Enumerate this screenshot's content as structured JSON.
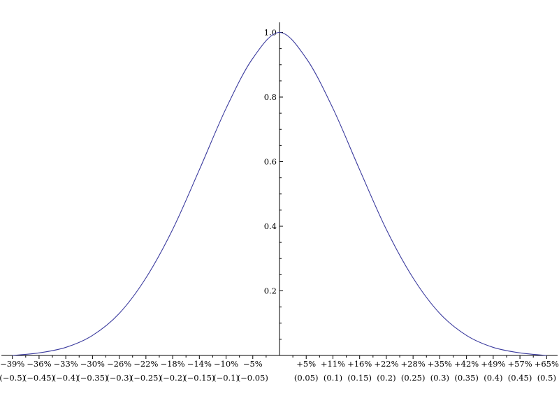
{
  "chart_data": {
    "type": "line",
    "title": "",
    "xlabel": "",
    "ylabel": "",
    "xlim": [
      -0.5205,
      0.5205
    ],
    "ylim": [
      0,
      1.03
    ],
    "grid": false,
    "line_color": "#3b3b9e",
    "series": [
      {
        "x": [
          -0.5,
          -0.45,
          -0.4,
          -0.35,
          -0.3,
          -0.25,
          -0.2,
          -0.15,
          -0.1,
          -0.05,
          0,
          0.05,
          0.1,
          0.15,
          0.2,
          0.25,
          0.3,
          0.35,
          0.4,
          0.45,
          0.5
        ],
        "y": [
          0.0,
          0.008,
          0.025,
          0.062,
          0.13,
          0.24,
          0.39,
          0.575,
          0.765,
          0.92,
          1.0,
          0.92,
          0.765,
          0.575,
          0.39,
          0.24,
          0.13,
          0.062,
          0.025,
          0.008,
          0.0
        ]
      }
    ],
    "y_ticks": [
      {
        "value": 0.2,
        "label": "0.2"
      },
      {
        "value": 0.4,
        "label": "0.4"
      },
      {
        "value": 0.6,
        "label": "0.6"
      },
      {
        "value": 0.8,
        "label": "0.8"
      },
      {
        "value": 1.0,
        "label": "1.0"
      }
    ],
    "x_ticks": [
      {
        "value": -0.5,
        "pct": "−39%",
        "raw": "(−0.5)"
      },
      {
        "value": -0.45,
        "pct": "−36%",
        "raw": "(−0.45)"
      },
      {
        "value": -0.4,
        "pct": "−33%",
        "raw": "(−0.4)"
      },
      {
        "value": -0.35,
        "pct": "−30%",
        "raw": "(−0.35)"
      },
      {
        "value": -0.3,
        "pct": "−26%",
        "raw": "(−0.3)"
      },
      {
        "value": -0.25,
        "pct": "−22%",
        "raw": "(−0.25)"
      },
      {
        "value": -0.2,
        "pct": "−18%",
        "raw": "(−0.2)"
      },
      {
        "value": -0.15,
        "pct": "−14%",
        "raw": "(−0.15)"
      },
      {
        "value": -0.1,
        "pct": "−10%",
        "raw": "(−0.1)"
      },
      {
        "value": -0.05,
        "pct": "−5%",
        "raw": "(−0.05)"
      },
      {
        "value": 0.05,
        "pct": "+5%",
        "raw": "(0.05)"
      },
      {
        "value": 0.1,
        "pct": "+11%",
        "raw": "(0.1)"
      },
      {
        "value": 0.15,
        "pct": "+16%",
        "raw": "(0.15)"
      },
      {
        "value": 0.2,
        "pct": "+22%",
        "raw": "(0.2)"
      },
      {
        "value": 0.25,
        "pct": "+28%",
        "raw": "(0.25)"
      },
      {
        "value": 0.3,
        "pct": "+35%",
        "raw": "(0.3)"
      },
      {
        "value": 0.35,
        "pct": "+42%",
        "raw": "(0.35)"
      },
      {
        "value": 0.4,
        "pct": "+49%",
        "raw": "(0.4)"
      },
      {
        "value": 0.45,
        "pct": "+57%",
        "raw": "(0.45)"
      },
      {
        "value": 0.5,
        "pct": "+65%",
        "raw": "(0.5)"
      }
    ]
  }
}
